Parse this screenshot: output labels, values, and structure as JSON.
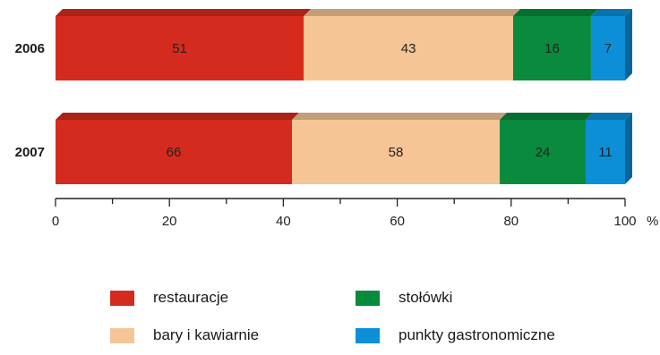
{
  "chart_data": {
    "type": "bar",
    "orientation": "horizontal",
    "stacked": "percent",
    "categories": [
      "2006",
      "2007"
    ],
    "series": [
      {
        "name": "restauracje",
        "values": [
          51,
          66
        ],
        "color": "#d52b1e"
      },
      {
        "name": "bary i kawiarnie",
        "values": [
          43,
          58
        ],
        "color": "#f5c596"
      },
      {
        "name": "stołówki",
        "values": [
          16,
          24
        ],
        "color": "#0a8a3c"
      },
      {
        "name": "punkty gastronomiczne",
        "values": [
          7,
          11
        ],
        "color": "#0d8fd8"
      }
    ],
    "xlim": [
      0,
      100
    ],
    "xticks": [
      0,
      20,
      40,
      60,
      80,
      100
    ],
    "xunit": "%",
    "grid": false,
    "legend_position": "bottom"
  }
}
